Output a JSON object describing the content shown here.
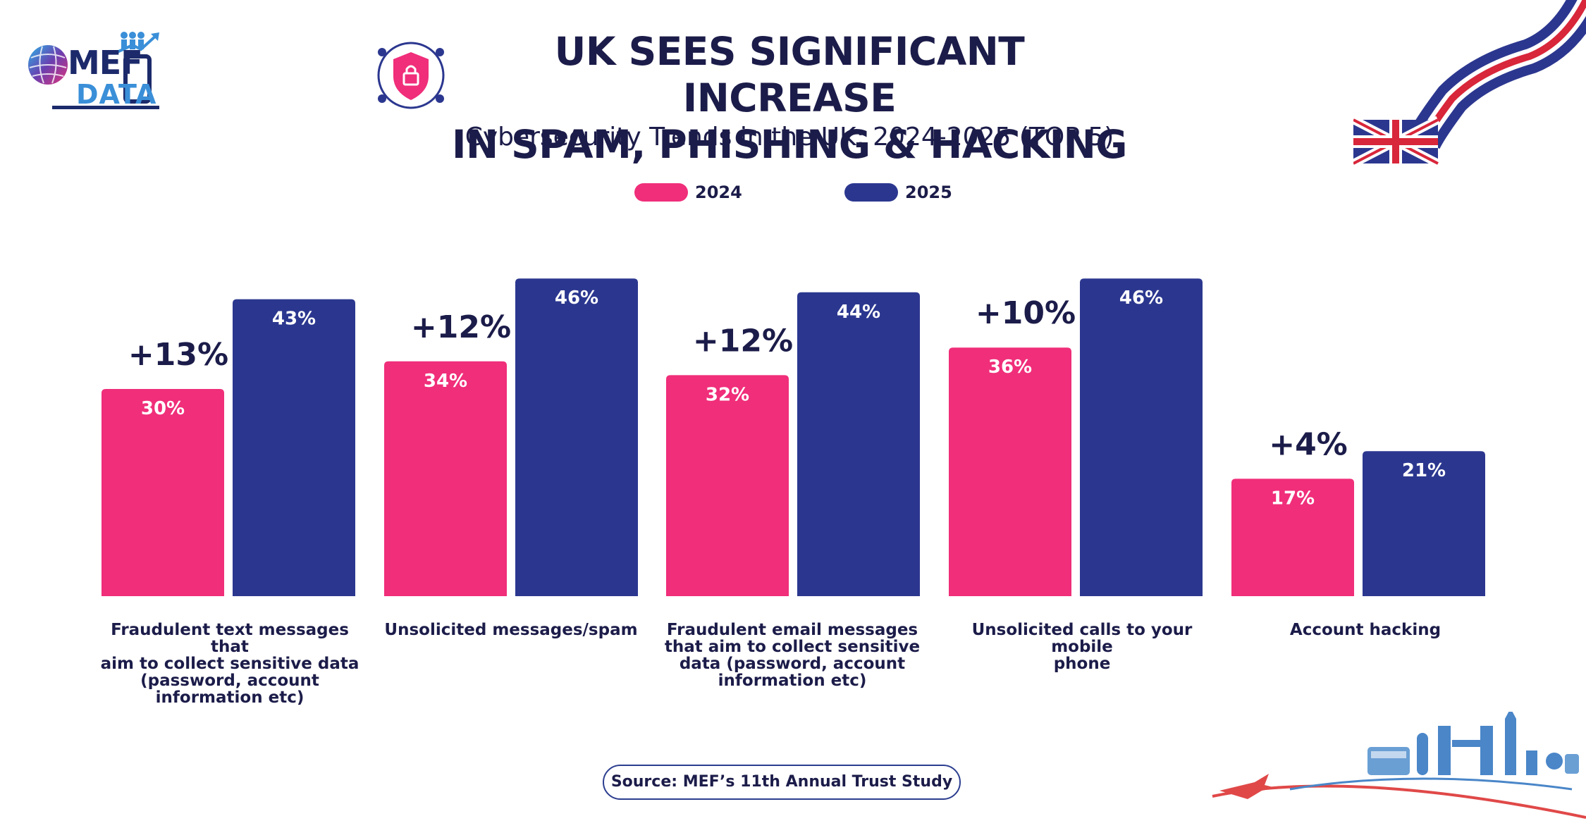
{
  "logo": {
    "line1": "MEF",
    "line2": "DATA"
  },
  "header": {
    "title_line1": "UK SEES SIGNIFICANT INCREASE",
    "title_line2": "IN SPAM, PHISHING & HACKING",
    "subtitle": "Cybersecurity Trends in the UK: 2024-2025 (TOP 5)"
  },
  "legend": [
    {
      "label": "2024",
      "color": "#f02e7a"
    },
    {
      "label": "2025",
      "color": "#2b378f"
    }
  ],
  "chart_data": {
    "type": "bar",
    "categories": [
      "Fraudulent text messages that aim to collect sensitive data (password, account information etc)",
      "Unsolicited messages/spam",
      "Fraudulent email messages that aim to collect sensitive data (password, account information etc)",
      "Unsolicited calls to your mobile phone",
      "Account hacking"
    ],
    "series": [
      {
        "name": "2024",
        "values": [
          30,
          34,
          32,
          36,
          17
        ],
        "labels": [
          "30%",
          "34%",
          "32%",
          "36%",
          "17%"
        ]
      },
      {
        "name": "2025",
        "values": [
          43,
          46,
          44,
          46,
          21
        ],
        "labels": [
          "43%",
          "46%",
          "44%",
          "46%",
          "21%"
        ]
      }
    ],
    "annotations": [
      "+13%",
      "+12%",
      "+12%",
      "+10%",
      "+4%"
    ],
    "ylim": [
      0,
      46
    ],
    "grid": false,
    "legend": "top-center"
  },
  "category_lines": [
    [
      "Fraudulent text messages that",
      "aim to collect sensitive data",
      "(password, account",
      "information etc)"
    ],
    [
      "Unsolicited messages/spam"
    ],
    [
      "Fraudulent email messages",
      "that aim to collect sensitive",
      "data (password, account",
      "information etc)"
    ],
    [
      "Unsolicited calls to your mobile",
      "phone"
    ],
    [
      "Account hacking"
    ]
  ],
  "footer": {
    "source": "Source: MEF’s 11th Annual Trust Study"
  },
  "colors": {
    "accent_pink": "#f02e7a",
    "accent_navy": "#2b378f",
    "text": "#1c1c4a"
  }
}
